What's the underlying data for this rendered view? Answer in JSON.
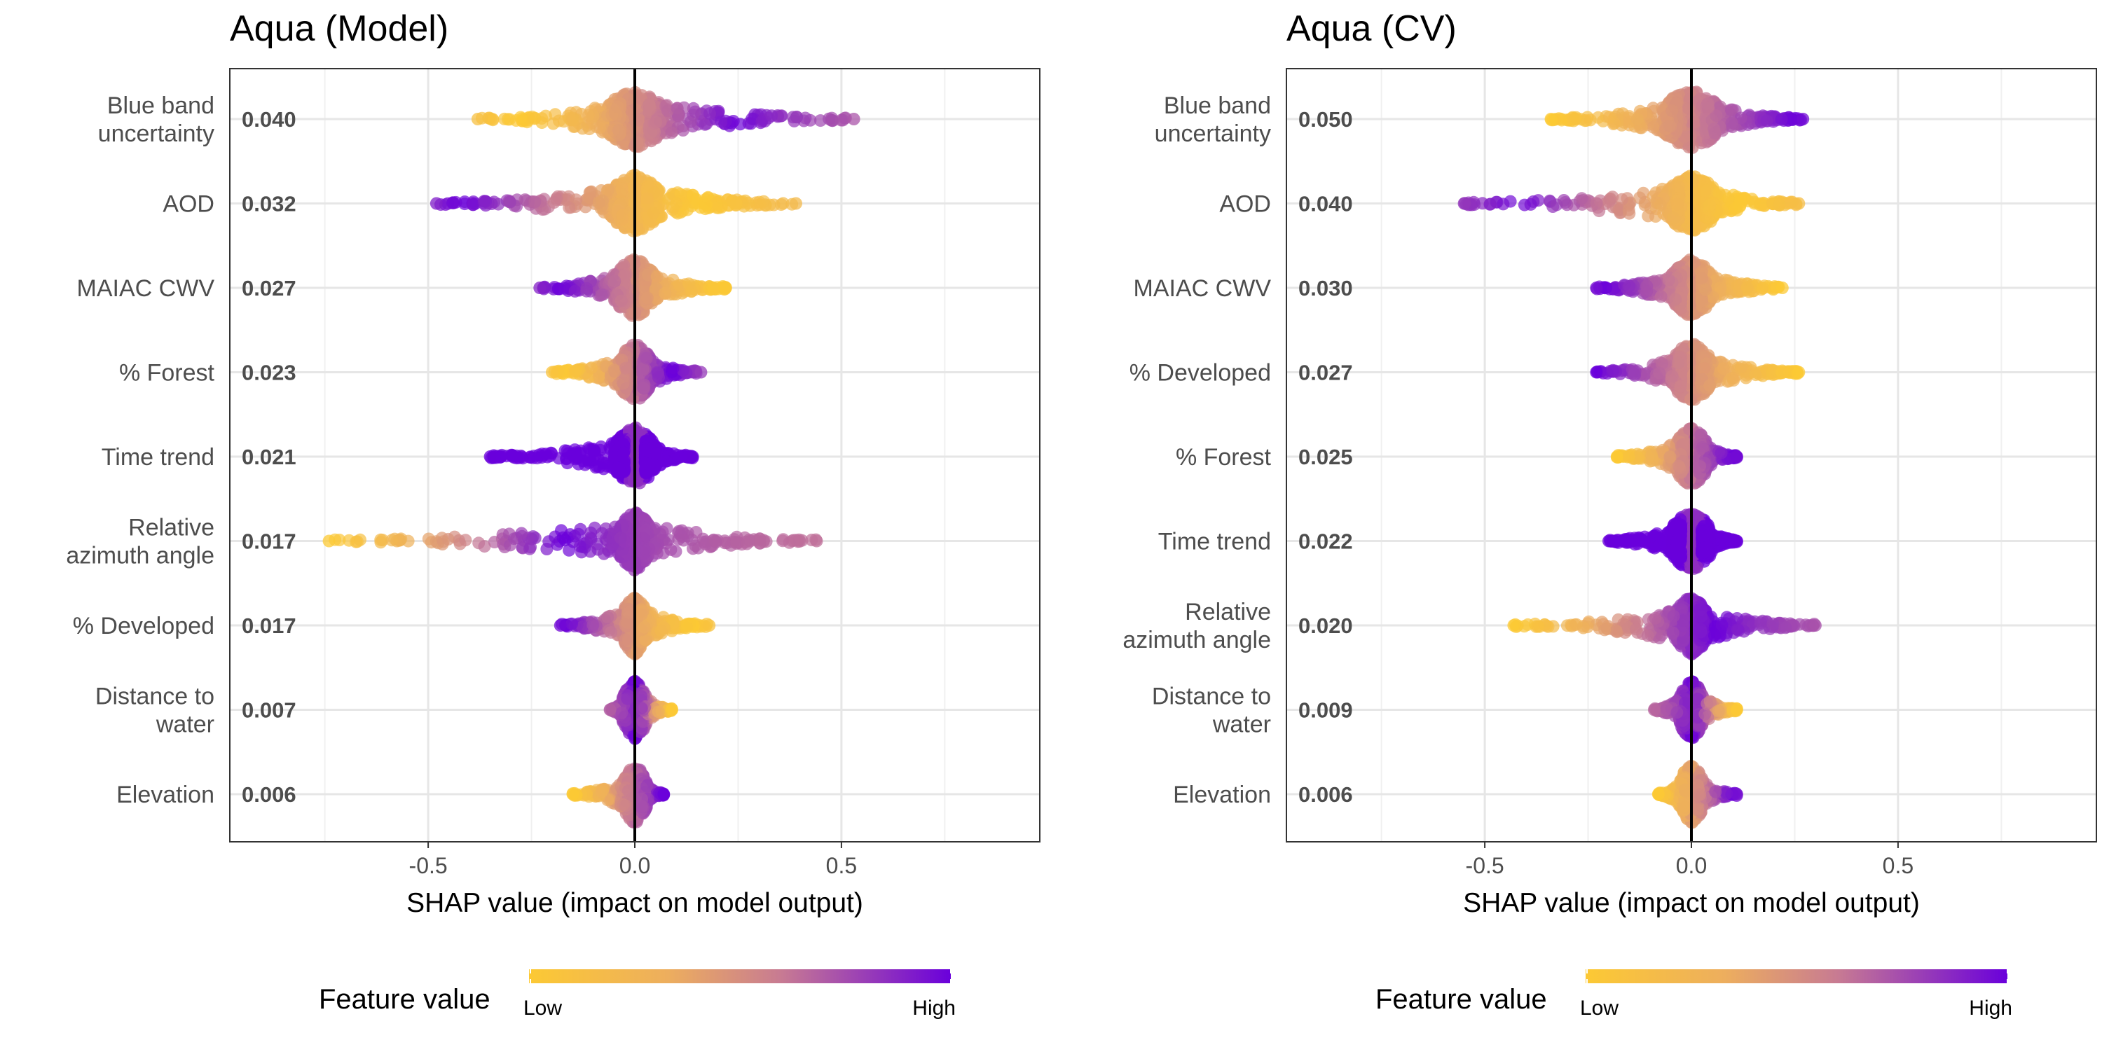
{
  "chart_data": [
    {
      "type": "scatter",
      "subtype": "shap-beeswarm",
      "title": "Aqua (Model)",
      "xlabel": "SHAP value (impact on model output)",
      "xlim": [
        -0.98,
        0.98
      ],
      "xticks": [
        -0.5,
        0.0,
        0.5
      ],
      "xtick_labels": [
        "-0.5",
        "0.0",
        "0.5"
      ],
      "grid": true,
      "features": [
        {
          "label": [
            "Blue band",
            "uncertainty"
          ],
          "importance": "0.040",
          "min": -0.38,
          "max": 0.53,
          "core": 0.07,
          "low_side": "negative",
          "low_extent": -0.28,
          "high_extent": 0.25
        },
        {
          "label": [
            "AOD"
          ],
          "importance": "0.032",
          "min": -0.48,
          "max": 0.39,
          "core": 0.06,
          "low_side": "positive",
          "low_extent": 0.16,
          "high_extent": -0.42
        },
        {
          "label": [
            "MAIAC CWV"
          ],
          "importance": "0.027",
          "min": -0.23,
          "max": 0.22,
          "core": 0.05,
          "low_side": "positive",
          "low_extent": 0.21,
          "high_extent": -0.18
        },
        {
          "label": [
            "% Forest"
          ],
          "importance": "0.023",
          "min": -0.2,
          "max": 0.16,
          "core": 0.04,
          "low_side": "negative",
          "low_extent": -0.17,
          "high_extent": 0.09
        },
        {
          "label": [
            "Time trend"
          ],
          "importance": "0.021",
          "min": -0.35,
          "max": 0.14,
          "core": 0.05,
          "low_side": "none",
          "low_extent": 0.0,
          "high_extent": -0.35
        },
        {
          "label": [
            "Relative",
            "azimuth angle"
          ],
          "importance": "0.017",
          "min": -0.74,
          "max": 0.44,
          "core": 0.04,
          "low_side": "negative",
          "low_extent": -0.74,
          "high_extent": -0.17
        },
        {
          "label": [
            "% Developed"
          ],
          "importance": "0.017",
          "min": -0.18,
          "max": 0.18,
          "core": 0.03,
          "low_side": "positive",
          "low_extent": 0.14,
          "high_extent": -0.17
        },
        {
          "label": [
            "Distance to",
            "water"
          ],
          "importance": "0.007",
          "min": -0.06,
          "max": 0.09,
          "core": 0.03,
          "low_side": "positive",
          "low_extent": 0.09,
          "high_extent": 0.0
        },
        {
          "label": [
            "Elevation"
          ],
          "importance": "0.006",
          "min": -0.15,
          "max": 0.07,
          "core": 0.03,
          "low_side": "negative",
          "low_extent": -0.15,
          "high_extent": 0.07
        }
      ]
    },
    {
      "type": "scatter",
      "subtype": "shap-beeswarm",
      "title": "Aqua (CV)",
      "xlabel": "SHAP value (impact on model output)",
      "xlim": [
        -0.98,
        0.98
      ],
      "xticks": [
        -0.5,
        0.0,
        0.5
      ],
      "xtick_labels": [
        "-0.5",
        "0.0",
        "0.5"
      ],
      "grid": true,
      "features": [
        {
          "label": [
            "Blue band",
            "uncertainty"
          ],
          "importance": "0.050",
          "min": -0.34,
          "max": 0.27,
          "core": 0.07,
          "low_side": "negative",
          "low_extent": -0.34,
          "high_extent": 0.25
        },
        {
          "label": [
            "AOD"
          ],
          "importance": "0.040",
          "min": -0.55,
          "max": 0.26,
          "core": 0.06,
          "low_side": "positive",
          "low_extent": 0.12,
          "high_extent": -0.42
        },
        {
          "label": [
            "MAIAC CWV"
          ],
          "importance": "0.030",
          "min": -0.23,
          "max": 0.22,
          "core": 0.05,
          "low_side": "positive",
          "low_extent": 0.22,
          "high_extent": -0.21
        },
        {
          "label": [
            "% Developed"
          ],
          "importance": "0.027",
          "min": -0.23,
          "max": 0.26,
          "core": 0.05,
          "low_side": "positive",
          "low_extent": 0.26,
          "high_extent": -0.23
        },
        {
          "label": [
            "% Forest"
          ],
          "importance": "0.025",
          "min": -0.18,
          "max": 0.11,
          "core": 0.04,
          "low_side": "negative",
          "low_extent": -0.18,
          "high_extent": 0.1
        },
        {
          "label": [
            "Time trend"
          ],
          "importance": "0.022",
          "min": -0.2,
          "max": 0.11,
          "core": 0.05,
          "low_side": "none",
          "low_extent": 0.0,
          "high_extent": -0.2
        },
        {
          "label": [
            "Relative",
            "azimuth angle"
          ],
          "importance": "0.020",
          "min": -0.43,
          "max": 0.3,
          "core": 0.04,
          "low_side": "negative",
          "low_extent": -0.43,
          "high_extent": 0.06
        },
        {
          "label": [
            "Distance to",
            "water"
          ],
          "importance": "0.009",
          "min": -0.09,
          "max": 0.11,
          "core": 0.03,
          "low_side": "positive",
          "low_extent": 0.11,
          "high_extent": 0.0
        },
        {
          "label": [
            "Elevation"
          ],
          "importance": "0.006",
          "min": -0.08,
          "max": 0.11,
          "core": 0.03,
          "low_side": "negative",
          "low_extent": -0.08,
          "high_extent": 0.1
        }
      ]
    }
  ],
  "legend": {
    "title": "Feature value",
    "low_label": "Low",
    "high_label": "High",
    "low_color": "#FCC934",
    "high_color": "#6A00DB"
  }
}
